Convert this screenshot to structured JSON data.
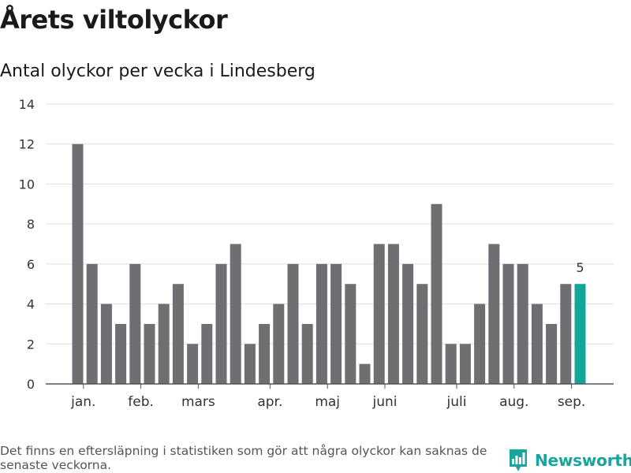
{
  "header": {
    "title": "Årets viltolyckor",
    "subtitle": "Antal olyckor per vecka i Lindesberg"
  },
  "chart_data": {
    "type": "bar",
    "title": "Årets viltolyckor",
    "subtitle": "Antal olyckor per vecka i Lindesberg",
    "xlabel": "",
    "ylabel": "",
    "ylim": [
      0,
      14
    ],
    "y_ticks": [
      0,
      2,
      4,
      6,
      8,
      10,
      12,
      14
    ],
    "grid": true,
    "x_ticks": [
      {
        "label": "jan.",
        "bar_index": 0.4
      },
      {
        "label": "feb.",
        "bar_index": 4.4
      },
      {
        "label": "mars",
        "bar_index": 8.4
      },
      {
        "label": "apr.",
        "bar_index": 13.4
      },
      {
        "label": "maj",
        "bar_index": 17.4
      },
      {
        "label": "juni",
        "bar_index": 21.4
      },
      {
        "label": "juli",
        "bar_index": 26.4
      },
      {
        "label": "aug.",
        "bar_index": 30.4
      },
      {
        "label": "sep.",
        "bar_index": 34.4
      }
    ],
    "values": [
      12,
      6,
      4,
      3,
      6,
      3,
      4,
      5,
      2,
      3,
      6,
      7,
      2,
      3,
      4,
      6,
      3,
      6,
      6,
      5,
      1,
      7,
      7,
      6,
      5,
      9,
      2,
      2,
      4,
      7,
      6,
      6,
      4,
      3,
      5,
      5
    ],
    "bar_color": "#6f6e73",
    "highlight_color": "#14a499",
    "highlight_index": 35,
    "highlight_label": "5"
  },
  "footer": {
    "note": "Det finns en eftersläpning i statistiken som gör att några olyckor kan saknas de senaste veckorna.",
    "brand": "Newsworthy",
    "brand_icon": "bar-chart-badge-icon",
    "brand_color": "#19a49c"
  }
}
